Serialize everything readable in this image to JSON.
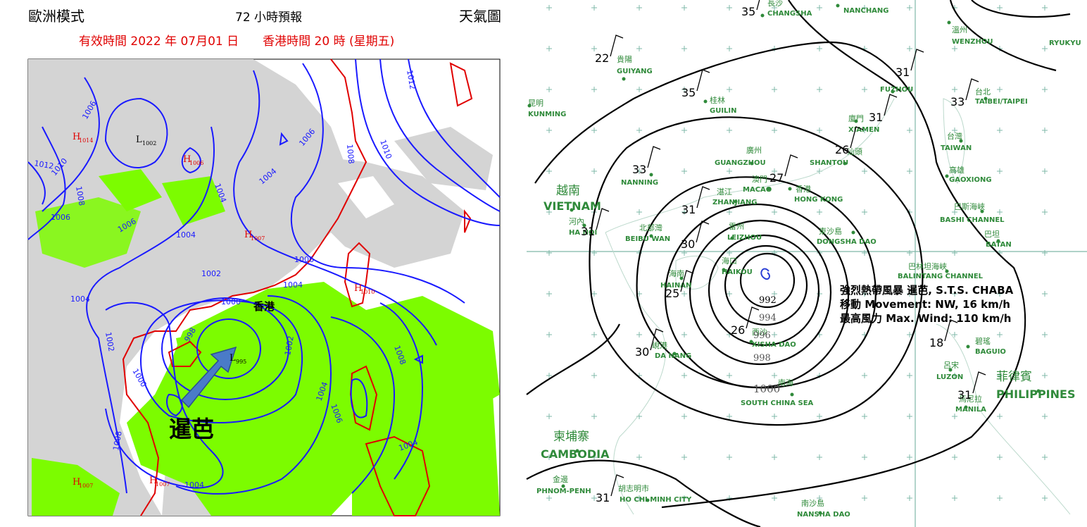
{
  "left_map": {
    "header": {
      "model": "歐洲模式",
      "forecast": "72 小時預報",
      "chart": "天氣圖"
    },
    "valid_time": "有效時間 2022 年 07月01 日　　香港時間 20 時 (星期五)",
    "isobar_labels": [
      "1012",
      "1010",
      "1008",
      "1006",
      "1004",
      "1004",
      "1006",
      "1004",
      "1002",
      "1006",
      "1004",
      "1006",
      "1008",
      "1006",
      "1012",
      "1010",
      "1004",
      "1002",
      "1000",
      "1000",
      "998",
      "1002",
      "1004",
      "1006",
      "1008",
      "1004",
      "1004",
      "1008"
    ],
    "pressure_centres": [
      {
        "type": "L",
        "value": "1002"
      },
      {
        "type": "H",
        "value": "1006"
      },
      {
        "type": "H",
        "value": "1014"
      },
      {
        "type": "H",
        "value": "1007"
      },
      {
        "type": "H",
        "value": "1010"
      },
      {
        "type": "L",
        "value": "995"
      },
      {
        "type": "H",
        "value": "1007"
      },
      {
        "type": "H",
        "value": "1007"
      }
    ],
    "place": "香港",
    "storm_name": "暹芭"
  },
  "right_map": {
    "places": [
      {
        "zh": "長沙",
        "en": "CHANGSHA"
      },
      {
        "zh": "南昌",
        "en": "NANCHANG"
      },
      {
        "zh": "溫州",
        "en": "WENZHOU"
      },
      {
        "en": "RYUKYU"
      },
      {
        "zh": "貴陽",
        "en": "GUIYANG"
      },
      {
        "zh": "昆明",
        "en": "KUNMING"
      },
      {
        "zh": "桂林",
        "en": "GUILIN"
      },
      {
        "en": "FUZHOU"
      },
      {
        "zh": "台北",
        "en": "TAIBEI/TAIPEI"
      },
      {
        "zh": "廈門",
        "en": "XIAMEN"
      },
      {
        "zh": "台灣",
        "en": "TAIWAN"
      },
      {
        "zh": "廣州",
        "en": "GUANGZHOU"
      },
      {
        "zh": "汕頭",
        "en": "SHANTOU"
      },
      {
        "en": "NANNING"
      },
      {
        "zh": "澳門",
        "en": "MACAO"
      },
      {
        "zh": "香港",
        "en": "HONG KONG"
      },
      {
        "zh": "湛江",
        "en": "ZHANJIANG"
      },
      {
        "zh": "越南",
        "en": "VIETNAM"
      },
      {
        "zh": "河內",
        "en": "HA NOI"
      },
      {
        "zh": "北部灣",
        "en": "BEIBU WAN"
      },
      {
        "zh": "雷州",
        "en": "LEIZHOU"
      },
      {
        "zh": "東沙島",
        "en": "DONGSHA DAO"
      },
      {
        "zh": "高雄",
        "en": "GAOXIONG"
      },
      {
        "zh": "巴斯海峽",
        "en": "BASHI CHANNEL"
      },
      {
        "zh": "巴坦",
        "en": "BATAN"
      },
      {
        "zh": "海口",
        "en": "HAIKOU"
      },
      {
        "zh": "海南",
        "en": "HAINAN"
      },
      {
        "zh": "巴林坦海峽",
        "en": "BALINTANG CHANNEL"
      },
      {
        "zh": "西沙",
        "en": "XISHA DAO"
      },
      {
        "zh": "峴港",
        "en": "DA NANG"
      },
      {
        "zh": "碧瑤",
        "en": "BAGUIO"
      },
      {
        "zh": "呂宋",
        "en": "LUZON"
      },
      {
        "zh": "菲律賓",
        "en": "PHILIPPINES"
      },
      {
        "zh": "馬尼拉",
        "en": "MANILA"
      },
      {
        "zh": "南海",
        "en": "SOUTH CHINA SEA"
      },
      {
        "zh": "柬埔寨",
        "en": "CAMBODIA"
      },
      {
        "zh": "金邊",
        "en": "PHNOM-PENH"
      },
      {
        "zh": "胡志明市",
        "en": "HO CHI MINH CITY"
      },
      {
        "zh": "南沙島",
        "en": "NANSHA DAO"
      }
    ],
    "isobar_labels": [
      "1000",
      "992",
      "994",
      "996",
      "998"
    ],
    "station_values": [
      35,
      22,
      35,
      33,
      31,
      31,
      30,
      25,
      26,
      30,
      31,
      33,
      31,
      26,
      27,
      18,
      31,
      31
    ],
    "storm_info": [
      "強烈熱帶風暴 暹芭, S.T.S. CHABA",
      "移動  Movement: NW, 16 km/h",
      "最高風力  Max. Wind: 110 km/h"
    ]
  }
}
